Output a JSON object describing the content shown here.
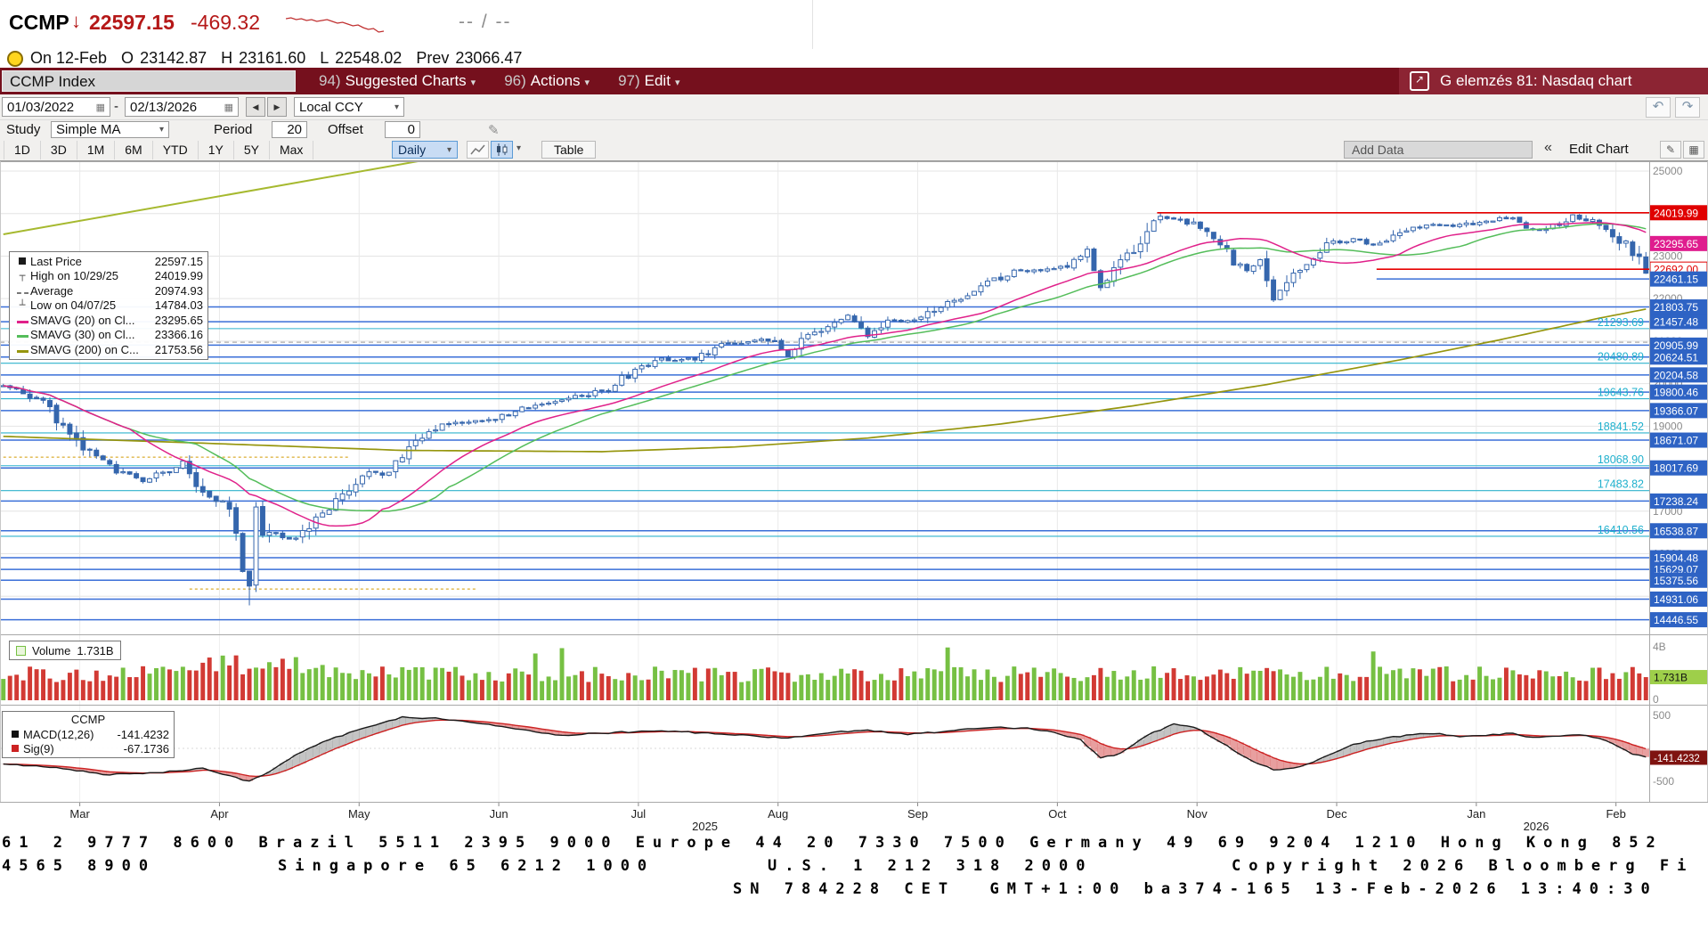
{
  "icons": {
    "caret": "▾",
    "calendar": "▦",
    "prev": "◀",
    "next": "▶",
    "undo": "↶",
    "redo": "↷",
    "collapse": "«",
    "export": "↗",
    "pencil": "✎",
    "grid": "▦"
  },
  "quote": {
    "ticker": "CCMP",
    "arrow": "↓",
    "last": "22597.15",
    "change": "-469.32",
    "bid_ask": "-- / --",
    "sparkline": [
      7,
      6,
      8,
      7,
      9,
      8,
      10,
      9,
      8,
      10,
      12,
      11,
      13,
      15,
      14,
      17,
      19,
      18,
      22,
      21
    ],
    "ohlc": {
      "session": "On 12-Feb",
      "o_label": "O",
      "o": "23142.87",
      "h_label": "H",
      "h": "23161.60",
      "l_label": "L",
      "l": "22548.02",
      "prev_label": "Prev",
      "prev": "23066.47"
    }
  },
  "command_bar": {
    "security": "CCMP Index",
    "menus": [
      {
        "num": "94)",
        "label": "Suggested Charts"
      },
      {
        "num": "96)",
        "label": "Actions"
      },
      {
        "num": "97)",
        "label": "Edit"
      }
    ],
    "chart_title": "G elemzés 81: Nasdaq chart"
  },
  "toolbar": {
    "date_from": "01/03/2022",
    "date_sep": "-",
    "date_to": "02/13/2026",
    "currency": "Local CCY",
    "study_label": "Study",
    "study_value": "Simple MA",
    "period_label": "Period",
    "period_value": "20",
    "offset_label": "Offset",
    "offset_value": "0"
  },
  "tabs_row": {
    "ranges": [
      "1D",
      "3D",
      "1M",
      "6M",
      "YTD",
      "1Y",
      "5Y",
      "Max"
    ],
    "frequency": "Daily",
    "table": "Table",
    "add_data": "Add Data",
    "collapse": "«",
    "edit_chart": "Edit Chart"
  },
  "legend": {
    "items": [
      {
        "type": "square",
        "color": "#1a1a1a",
        "label": "Last Price",
        "value": "22597.15"
      },
      {
        "type": "glyph",
        "glyph": "┬",
        "color": "#555555",
        "label": "High on 10/29/25",
        "value": "24019.99"
      },
      {
        "type": "dash",
        "color": "#777777",
        "label": "Average",
        "value": "20974.93"
      },
      {
        "type": "glyph",
        "glyph": "┴",
        "color": "#555555",
        "label": "Low on 04/07/25",
        "value": "14784.03"
      },
      {
        "type": "line",
        "color": "#e0218a",
        "label": "SMAVG (20) on Cl...",
        "value": "23295.65"
      },
      {
        "type": "line",
        "color": "#54bd5a",
        "label": "SMAVG (30) on Cl...",
        "value": "23366.16"
      },
      {
        "type": "line",
        "color": "#96960e",
        "label": "SMAVG (200) on C...",
        "value": "21753.56"
      }
    ]
  },
  "volume_legend": {
    "label": "Volume",
    "value": "1.731B"
  },
  "macd_legend": {
    "title": "CCMP",
    "rows": [
      {
        "label": "MACD(12,26)",
        "value": "-141.4232",
        "color": "#111111"
      },
      {
        "label": "Sig(9)",
        "value": "-67.1736",
        "color": "#cc2222"
      }
    ]
  },
  "chart_data": {
    "type": "candlestick+volume+macd",
    "total_days": 248,
    "last_close": 22597.15,
    "y_main": {
      "min": 14103,
      "max": 25231,
      "grid_min": 15000,
      "grid_max": 25000,
      "grid_step": 1000
    },
    "x_axis": {
      "months": [
        "Mar",
        "Apr",
        "May",
        "Jun",
        "Jul",
        "Aug",
        "Sep",
        "Oct",
        "Nov",
        "Dec",
        "Jan",
        "Feb"
      ],
      "month_start_days": [
        12,
        33,
        54,
        75,
        96,
        117,
        138,
        159,
        180,
        201,
        222,
        243
      ],
      "year_labels": [
        {
          "text": "2025",
          "day": 106
        },
        {
          "text": "2026",
          "day": 231
        }
      ]
    },
    "price_anchors": [
      [
        0,
        19950
      ],
      [
        3,
        19780
      ],
      [
        6,
        19520
      ],
      [
        9,
        19050
      ],
      [
        12,
        18520
      ],
      [
        15,
        18120
      ],
      [
        18,
        17900
      ],
      [
        21,
        17720
      ],
      [
        24,
        17900
      ],
      [
        27,
        18120
      ],
      [
        30,
        17520
      ],
      [
        32,
        17300
      ],
      [
        34,
        17060
      ],
      [
        35,
        16560
      ],
      [
        36,
        15620
      ],
      [
        37,
        15270
      ],
      [
        38,
        17120
      ],
      [
        39,
        16390
      ],
      [
        41,
        16460
      ],
      [
        44,
        16310
      ],
      [
        47,
        16800
      ],
      [
        50,
        17280
      ],
      [
        54,
        17840
      ],
      [
        58,
        17940
      ],
      [
        61,
        18560
      ],
      [
        63,
        18710
      ],
      [
        66,
        19010
      ],
      [
        70,
        19100
      ],
      [
        74,
        19160
      ],
      [
        78,
        19400
      ],
      [
        82,
        19590
      ],
      [
        87,
        19710
      ],
      [
        91,
        19910
      ],
      [
        95,
        20300
      ],
      [
        99,
        20560
      ],
      [
        104,
        20590
      ],
      [
        108,
        20900
      ],
      [
        112,
        21010
      ],
      [
        116,
        21070
      ],
      [
        118,
        20660
      ],
      [
        122,
        21240
      ],
      [
        127,
        21630
      ],
      [
        130,
        21110
      ],
      [
        133,
        21450
      ],
      [
        137,
        21460
      ],
      [
        140,
        21700
      ],
      [
        144,
        22050
      ],
      [
        148,
        22350
      ],
      [
        152,
        22630
      ],
      [
        156,
        22670
      ],
      [
        160,
        22790
      ],
      [
        163,
        23050
      ],
      [
        165,
        22260
      ],
      [
        168,
        22950
      ],
      [
        171,
        23310
      ],
      [
        174,
        23960
      ],
      [
        177,
        23830
      ],
      [
        180,
        23710
      ],
      [
        183,
        23360
      ],
      [
        185,
        22880
      ],
      [
        187,
        22640
      ],
      [
        189,
        23000
      ],
      [
        191,
        22090
      ],
      [
        193,
        22280
      ],
      [
        196,
        22880
      ],
      [
        199,
        23290
      ],
      [
        203,
        23400
      ],
      [
        207,
        23260
      ],
      [
        211,
        23650
      ],
      [
        215,
        23720
      ],
      [
        219,
        23710
      ],
      [
        223,
        23850
      ],
      [
        227,
        23920
      ],
      [
        230,
        23610
      ],
      [
        233,
        23700
      ],
      [
        236,
        23950
      ],
      [
        239,
        23810
      ],
      [
        241,
        23700
      ],
      [
        243,
        23410
      ],
      [
        245,
        23160
      ],
      [
        246,
        23070
      ],
      [
        247,
        22597.15
      ]
    ],
    "high_marker": {
      "day": 174,
      "price": 24019.99,
      "label": "High on 10/29/25"
    },
    "low_marker": {
      "day": 37,
      "price": 14784.03,
      "label": "Low on 04/07/25"
    },
    "average_line": {
      "v": 20974.93
    },
    "sma200_anchors": [
      [
        0,
        18760
      ],
      [
        30,
        18600
      ],
      [
        60,
        18430
      ],
      [
        90,
        18400
      ],
      [
        110,
        18510
      ],
      [
        130,
        18720
      ],
      [
        150,
        19050
      ],
      [
        170,
        19480
      ],
      [
        190,
        19980
      ],
      [
        210,
        20560
      ],
      [
        225,
        21030
      ],
      [
        240,
        21540
      ],
      [
        247,
        21753.56
      ]
    ],
    "trendline": {
      "d1": 0,
      "v1": 23513,
      "d2": 70,
      "v2": 25441,
      "color": "#a6b92f"
    },
    "dashed_segments": [
      {
        "v": 18270,
        "d1": 0,
        "d2": 52
      },
      {
        "v": 15170,
        "d1": 28,
        "d2": 71
      }
    ],
    "h_lines": [
      {
        "v": 24019.99,
        "label": "24019.99",
        "color": "red",
        "from_day": 174,
        "badge": "red"
      },
      {
        "v": 22692.0,
        "label": "22692.00",
        "color": "red",
        "from_day": 207,
        "badge": "redtext"
      },
      {
        "v": 22461.15,
        "label": "22461.15",
        "color": "blue",
        "from_day": 207,
        "badge": "blue"
      },
      {
        "v": 21803.75,
        "label": "21803.75",
        "color": "blue",
        "from_day": 0,
        "badge": "blue"
      },
      {
        "v": 21457.48,
        "label": "21457.48",
        "color": "blue",
        "from_day": 0,
        "badge": "blue"
      },
      {
        "v": 20905.99,
        "label": "20905.99",
        "color": "blue",
        "from_day": 0,
        "badge": "blue"
      },
      {
        "v": 20624.51,
        "label": "20624.51",
        "color": "blue",
        "from_day": 0,
        "badge": "blue"
      },
      {
        "v": 20204.58,
        "label": "20204.58",
        "color": "blue",
        "from_day": 0,
        "badge": "blue"
      },
      {
        "v": 19800.46,
        "label": "19800.46",
        "color": "blue",
        "from_day": 0,
        "badge": "blue"
      },
      {
        "v": 19366.07,
        "label": "19366.07",
        "color": "blue",
        "from_day": 0,
        "badge": "blue"
      },
      {
        "v": 18671.07,
        "label": "18671.07",
        "color": "blue",
        "from_day": 0,
        "badge": "blue"
      },
      {
        "v": 18017.69,
        "label": "18017.69",
        "color": "blue",
        "from_day": 0,
        "badge": "blue"
      },
      {
        "v": 17238.24,
        "label": "17238.24",
        "color": "blue",
        "from_day": 0,
        "badge": "blue"
      },
      {
        "v": 16538.87,
        "label": "16538.87",
        "color": "blue",
        "from_day": 0,
        "badge": "blue"
      },
      {
        "v": 15904.48,
        "label": "15904.48",
        "color": "blue",
        "from_day": 0,
        "badge": "blue"
      },
      {
        "v": 15629.07,
        "label": "15629.07",
        "color": "blue",
        "from_day": 0,
        "badge": "blue"
      },
      {
        "v": 15375.56,
        "label": "15375.56",
        "color": "blue",
        "from_day": 0,
        "badge": "blue"
      },
      {
        "v": 14931.06,
        "label": "14931.06",
        "color": "blue",
        "from_day": 0,
        "badge": "blue"
      },
      {
        "v": 14446.55,
        "label": "14446.55",
        "color": "blue",
        "from_day": 0,
        "badge": "blue"
      }
    ],
    "cyan_lines": [
      {
        "v": 21293.69,
        "label": "21293.69"
      },
      {
        "v": 20480.89,
        "label": "20480.89"
      },
      {
        "v": 19643.76,
        "label": "19643.76"
      },
      {
        "v": 18841.52,
        "label": "18841.52"
      },
      {
        "v": 18068.9,
        "label": "18068.90"
      },
      {
        "v": 17483.82,
        "label": "17483.82"
      },
      {
        "v": 16410.56,
        "label": "16410.56"
      }
    ],
    "extra_badges": [
      {
        "v": 23295.65,
        "label": "23295.65",
        "bg": "#df1d8e",
        "fg": "#ffffff"
      }
    ],
    "volume": {
      "base_min": 1.35,
      "base_max": 2.55,
      "boost_range": [
        30,
        48
      ],
      "spikes": [
        [
          80,
          3.5
        ],
        [
          84,
          3.9
        ],
        [
          142,
          3.95
        ],
        [
          206,
          3.65
        ]
      ],
      "last_value": 1.731,
      "axis_top": "4B",
      "axis_zero": "0",
      "last_label": "1.731B"
    },
    "macd": {
      "anchors": [
        [
          0,
          -230
        ],
        [
          8,
          -300
        ],
        [
          16,
          -400
        ],
        [
          24,
          -360
        ],
        [
          30,
          -300
        ],
        [
          34,
          -420
        ],
        [
          37,
          -500
        ],
        [
          40,
          -350
        ],
        [
          44,
          -100
        ],
        [
          48,
          100
        ],
        [
          54,
          300
        ],
        [
          60,
          470
        ],
        [
          66,
          450
        ],
        [
          72,
          380
        ],
        [
          78,
          280
        ],
        [
          84,
          200
        ],
        [
          90,
          230
        ],
        [
          98,
          270
        ],
        [
          106,
          230
        ],
        [
          112,
          190
        ],
        [
          118,
          160
        ],
        [
          124,
          240
        ],
        [
          130,
          280
        ],
        [
          136,
          210
        ],
        [
          142,
          260
        ],
        [
          148,
          320
        ],
        [
          154,
          300
        ],
        [
          158,
          240
        ],
        [
          162,
          130
        ],
        [
          165,
          -150
        ],
        [
          168,
          -80
        ],
        [
          172,
          200
        ],
        [
          176,
          370
        ],
        [
          179,
          330
        ],
        [
          183,
          100
        ],
        [
          187,
          -150
        ],
        [
          191,
          -330
        ],
        [
          195,
          -280
        ],
        [
          199,
          -120
        ],
        [
          203,
          60
        ],
        [
          207,
          140
        ],
        [
          211,
          200
        ],
        [
          215,
          230
        ],
        [
          219,
          180
        ],
        [
          223,
          200
        ],
        [
          227,
          230
        ],
        [
          230,
          160
        ],
        [
          233,
          180
        ],
        [
          236,
          210
        ],
        [
          239,
          170
        ],
        [
          241,
          120
        ],
        [
          243,
          20
        ],
        [
          245,
          -80
        ],
        [
          247,
          -141.4232
        ]
      ],
      "axis_top": "500",
      "axis_bottom": "-500",
      "badge": "-141.4232",
      "badge_value": -141.4232
    },
    "colors": {
      "up": "#ffffff",
      "down": "#3566ad",
      "sma20": "#e0218a",
      "sma30": "#54bd5a",
      "sma200": "#96960e",
      "blue_line": "#3a6fd8",
      "cyan_line": "#2fb3cd",
      "cyan_label": "#1fb0cd",
      "red_line": "#e60000",
      "vol_up": "#76c043",
      "vol_down": "#d23a34",
      "macd": "#1a1a1a",
      "sig": "#cc2222"
    }
  },
  "footer": {
    "line1": "61 2 9777 8600 Brazil 5511 2395 9000 Europe 44 20 7330 7500 Germany 49 69 9204 1210 Hong Kong 852",
    "line2_parts": [
      "4565 8900",
      "Singapore 65 6212 1000",
      "U.S. 1 212 318 2000",
      "Copyright 2026 Bloomberg Fi"
    ],
    "line3": "SN 784228 CET  GMT+1:00 ba374-165 13-Feb-2026 13:40:30"
  }
}
